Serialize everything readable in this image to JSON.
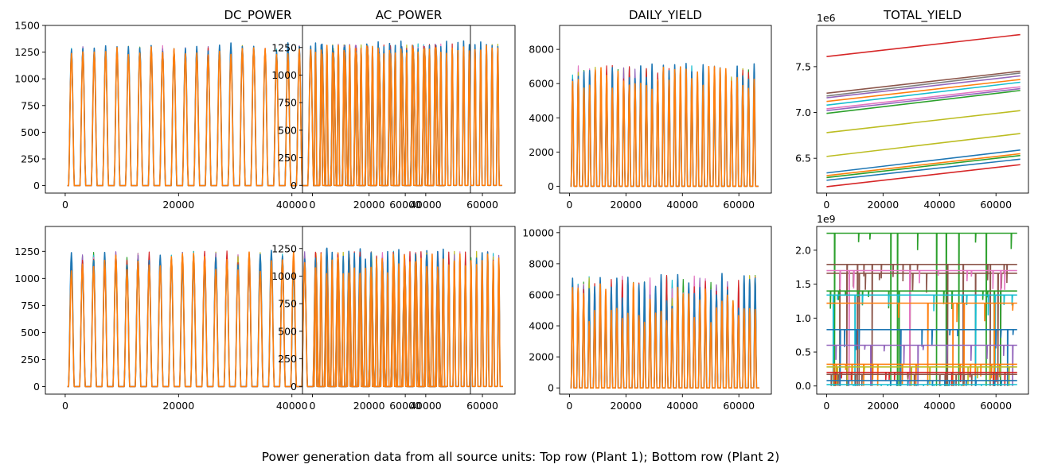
{
  "figure": {
    "caption": "Power generation data from all source units: Top row (Plant 1); Bottom row (Plant 2)"
  },
  "chart_data": [
    {
      "type": "line",
      "title": "DC_POWER",
      "xlim": [
        -3500,
        71500
      ],
      "ylim": [
        -70,
        1500
      ],
      "xticks": [
        0,
        20000,
        40000,
        60000
      ],
      "yticks": [
        0,
        250,
        500,
        750,
        1000,
        1250,
        1500
      ],
      "xticklabels": [
        "0",
        "20000",
        "40000",
        "60000"
      ],
      "yticklabels": [
        "0",
        "250",
        "500",
        "750",
        "1000",
        "1250",
        "1500"
      ],
      "multiplier": "",
      "series": [
        {
          "color": "#1f77b4",
          "peak": 1340,
          "peakvar": 90,
          "period": 2010,
          "start": 600,
          "end": 68600
        },
        {
          "color": "#ff7f0e",
          "peak": 1300,
          "peakvar": 80,
          "period": 2010,
          "start": 600,
          "end": 68600
        }
      ]
    },
    {
      "type": "line",
      "title": "AC_POWER",
      "xlim": [
        -3500,
        71500
      ],
      "ylim": [
        -70,
        1450
      ],
      "xticks": [
        0,
        20000,
        40000,
        60000
      ],
      "yticks": [
        0,
        250,
        500,
        750,
        1000,
        1250
      ],
      "xticklabels": [
        "0",
        "20000",
        "40000",
        "60000"
      ],
      "yticklabels": [
        "0",
        "250",
        "500",
        "750",
        "1000",
        "1250"
      ],
      "multiplier": "",
      "series": [
        {
          "color": "#1f77b4",
          "peak": 1310,
          "peakvar": 90,
          "period": 2010,
          "start": 600,
          "end": 68600
        },
        {
          "color": "#ff7f0e",
          "peak": 1270,
          "peakvar": 80,
          "period": 2010,
          "start": 600,
          "end": 68600
        }
      ]
    },
    {
      "type": "line",
      "title": "DAILY_YIELD",
      "xlim": [
        -3500,
        71500
      ],
      "ylim": [
        -400,
        9400
      ],
      "xticks": [
        0,
        20000,
        40000,
        60000
      ],
      "yticks": [
        0,
        2000,
        4000,
        6000,
        8000
      ],
      "xticklabels": [
        "0",
        "20000",
        "40000",
        "60000"
      ],
      "yticklabels": [
        "0",
        "2000",
        "4000",
        "6000",
        "8000"
      ],
      "multiplier": "",
      "series": [
        {
          "color": "#1f77b4",
          "peak": 7200,
          "peakvar": 1600,
          "period": 2010,
          "start": 600,
          "end": 68600
        },
        {
          "color": "#ff7f0e",
          "peak": 7000,
          "peakvar": 1500,
          "period": 2010,
          "start": 600,
          "end": 68600
        }
      ]
    },
    {
      "type": "line",
      "title": "TOTAL_YIELD",
      "xlim": [
        -3500,
        71500
      ],
      "ylim": [
        6.12,
        7.95
      ],
      "xticks": [
        0,
        20000,
        40000,
        60000
      ],
      "yticks": [
        6.5,
        7.0,
        7.5
      ],
      "xticklabels": [
        "0",
        "20000",
        "40000",
        "60000"
      ],
      "yticklabels": [
        "6.5",
        "7.0",
        "7.5"
      ],
      "multiplier": "1e6",
      "series": [
        {
          "color": "#d62728",
          "y0": 7.61,
          "y1": 7.85
        },
        {
          "color": "#8c564b",
          "y0": 7.21,
          "y1": 7.45
        },
        {
          "color": "#7f7f7f",
          "y0": 7.18,
          "y1": 7.43
        },
        {
          "color": "#9467bd",
          "y0": 7.16,
          "y1": 7.4
        },
        {
          "color": "#ff7f0e",
          "y0": 7.12,
          "y1": 7.36
        },
        {
          "color": "#17becf",
          "y0": 7.08,
          "y1": 7.33
        },
        {
          "color": "#e377c2",
          "y0": 7.04,
          "y1": 7.28
        },
        {
          "color": "#9467bd",
          "y0": 7.02,
          "y1": 7.26
        },
        {
          "color": "#2ca02c",
          "y0": 6.99,
          "y1": 7.24
        },
        {
          "color": "#bcbd22",
          "y0": 6.78,
          "y1": 7.02
        },
        {
          "color": "#bcbd22",
          "y0": 6.52,
          "y1": 6.77
        },
        {
          "color": "#1f77b4",
          "y0": 6.34,
          "y1": 6.59
        },
        {
          "color": "#ff7f0e",
          "y0": 6.31,
          "y1": 6.55
        },
        {
          "color": "#2ca02c",
          "y0": 6.29,
          "y1": 6.53
        },
        {
          "color": "#1f77b4",
          "y0": 6.26,
          "y1": 6.49
        },
        {
          "color": "#d62728",
          "y0": 6.19,
          "y1": 6.43
        }
      ]
    },
    {
      "type": "line",
      "title": "",
      "xlim": [
        -3500,
        71500
      ],
      "ylim": [
        -70,
        1480
      ],
      "xticks": [
        0,
        20000,
        40000,
        60000
      ],
      "yticks": [
        0,
        250,
        500,
        750,
        1000,
        1250
      ],
      "xticklabels": [
        "0",
        "20000",
        "40000",
        "60000"
      ],
      "yticklabels": [
        "0",
        "250",
        "500",
        "750",
        "1000",
        "1250"
      ],
      "multiplier": "",
      "series": [
        {
          "color": "#1f77b4",
          "peak": 1280,
          "peakvar": 200,
          "period": 1960,
          "start": 600,
          "end": 67500
        },
        {
          "color": "#ff7f0e",
          "peak": 1250,
          "peakvar": 200,
          "period": 1960,
          "start": 600,
          "end": 67500
        }
      ]
    },
    {
      "type": "line",
      "title": "",
      "xlim": [
        -3500,
        71500
      ],
      "ylim": [
        -70,
        1450
      ],
      "xticks": [
        0,
        20000,
        40000,
        60000
      ],
      "yticks": [
        0,
        250,
        500,
        750,
        1000,
        1250
      ],
      "xticklabels": [
        "0",
        "20000",
        "40000",
        "60000"
      ],
      "yticklabels": [
        "0",
        "250",
        "500",
        "750",
        "1000",
        "1250"
      ],
      "multiplier": "",
      "series": [
        {
          "color": "#1f77b4",
          "peak": 1250,
          "peakvar": 200,
          "period": 1960,
          "start": 600,
          "end": 67500
        },
        {
          "color": "#ff7f0e",
          "peak": 1220,
          "peakvar": 200,
          "period": 1960,
          "start": 600,
          "end": 67500
        }
      ]
    },
    {
      "type": "line",
      "title": "",
      "xlim": [
        -3500,
        71500
      ],
      "ylim": [
        -400,
        10400
      ],
      "xticks": [
        0,
        20000,
        40000,
        60000
      ],
      "yticks": [
        0,
        2000,
        4000,
        6000,
        8000,
        10000
      ],
      "xticklabels": [
        "0",
        "20000",
        "40000",
        "60000"
      ],
      "yticklabels": [
        "0",
        "2000",
        "4000",
        "6000",
        "8000",
        "10000"
      ],
      "multiplier": "",
      "series": [
        {
          "color": "#1f77b4",
          "peak": 7400,
          "peakvar": 2400,
          "period": 1960,
          "start": 600,
          "end": 67500
        },
        {
          "color": "#ff7f0e",
          "peak": 6800,
          "peakvar": 2600,
          "period": 1960,
          "start": 600,
          "end": 67500
        }
      ]
    },
    {
      "type": "line",
      "title": "",
      "xlim": [
        -3500,
        71500
      ],
      "ylim": [
        -0.12,
        2.35
      ],
      "xticks": [
        0,
        20000,
        40000,
        60000
      ],
      "yticks": [
        0.0,
        0.5,
        1.0,
        1.5,
        2.0
      ],
      "xticklabels": [
        "0",
        "20000",
        "40000",
        "60000"
      ],
      "yticklabels": [
        "0.0",
        "0.5",
        "1.0",
        "1.5",
        "2.0"
      ],
      "multiplier": "1e9",
      "series": [
        {
          "color": "#2ca02c",
          "level": 2.25
        },
        {
          "color": "#8c564b",
          "level": 1.79
        },
        {
          "color": "#8c564b",
          "level": 1.66
        },
        {
          "color": "#e377c2",
          "level": 1.7
        },
        {
          "color": "#2ca02c",
          "level": 1.4
        },
        {
          "color": "#17becf",
          "level": 1.34
        },
        {
          "color": "#ff7f0e",
          "level": 1.22
        },
        {
          "color": "#1f77b4",
          "level": 0.83
        },
        {
          "color": "#9467bd",
          "level": 0.6
        },
        {
          "color": "#ff7f0e",
          "level": 0.32
        },
        {
          "color": "#bcbd22",
          "level": 0.28
        },
        {
          "color": "#d62728",
          "level": 0.2
        },
        {
          "color": "#8c564b",
          "level": 0.17
        },
        {
          "color": "#1f77b4",
          "level": 0.08
        },
        {
          "color": "#17becf",
          "level": 0.02
        }
      ]
    }
  ]
}
